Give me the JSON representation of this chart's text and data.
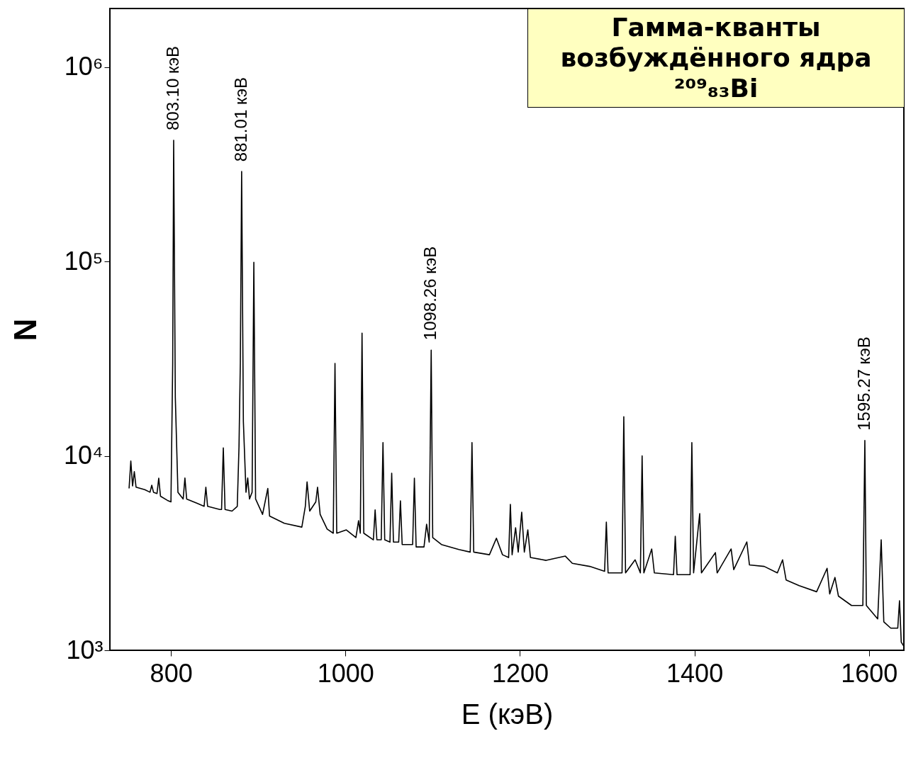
{
  "chart_data": {
    "type": "line",
    "title": "Гамма-кванты возбуждённого ядра ²⁰⁹₈₃Bi",
    "xlabel": "E (кэВ)",
    "ylabel": "N",
    "log": "y",
    "grid": false,
    "xlim": [
      730,
      1640
    ],
    "xticks": [
      800,
      1000,
      1200,
      1400,
      1600
    ],
    "ylim": [
      1000,
      2000000
    ],
    "yticks": [
      {
        "value": 1000,
        "label": "10³"
      },
      {
        "value": 10000,
        "label": "10⁴"
      },
      {
        "value": 100000,
        "label": "10⁵"
      },
      {
        "value": 1000000,
        "label": "10⁶"
      }
    ],
    "annotations": [
      {
        "text": "803.10 кэВ",
        "x": 803.1,
        "y": 420000
      },
      {
        "text": "881.01 кэВ",
        "x": 881.01,
        "y": 290000
      },
      {
        "text": "1098.26 кэВ",
        "x": 1098.26,
        "y": 35000
      },
      {
        "text": "1595.27 кэВ",
        "x": 1595.27,
        "y": 12000
      }
    ],
    "x": [
      752,
      754,
      756,
      758,
      760,
      770,
      776,
      778,
      780,
      784,
      786,
      788,
      796,
      800,
      802,
      803.1,
      805,
      808,
      814,
      816,
      818,
      830,
      838,
      840,
      842,
      856,
      858,
      860,
      862,
      870,
      876,
      878,
      879.5,
      881.01,
      883,
      886,
      888,
      890,
      893,
      895,
      897,
      905,
      911,
      913,
      930,
      950,
      954,
      956,
      959,
      966,
      968,
      971,
      979,
      986,
      988,
      990,
      1001,
      1012,
      1015,
      1017,
      1019,
      1021,
      1032,
      1034,
      1036,
      1041,
      1043,
      1045,
      1051,
      1053,
      1055,
      1061,
      1063,
      1065,
      1077,
      1079,
      1081,
      1090,
      1093,
      1096,
      1098.26,
      1100,
      1110,
      1130,
      1143,
      1145,
      1147,
      1165,
      1173,
      1180,
      1187,
      1189,
      1191,
      1195,
      1198,
      1202,
      1205,
      1209,
      1212,
      1230,
      1252,
      1260,
      1280,
      1297,
      1299,
      1301,
      1317,
      1319,
      1321,
      1332,
      1338,
      1340,
      1342,
      1351,
      1354,
      1376,
      1378,
      1380,
      1395,
      1397,
      1399,
      1406,
      1408,
      1424,
      1426,
      1442,
      1445,
      1460,
      1463,
      1480,
      1495,
      1501,
      1505,
      1520,
      1540,
      1552,
      1555,
      1561,
      1565,
      1580,
      1593,
      1595.27,
      1597,
      1610,
      1614,
      1617,
      1625,
      1633,
      1635,
      1637,
      1640
    ],
    "series": [
      {
        "color": "#000000",
        "values": [
          6800,
          9400,
          7000,
          8300,
          6900,
          6700,
          6500,
          7060,
          6500,
          6400,
          7680,
          6200,
          5900,
          5800,
          30000,
          420000,
          20000,
          6500,
          6000,
          7700,
          6000,
          5700,
          5500,
          6900,
          5500,
          5300,
          5300,
          11000,
          5300,
          5200,
          5500,
          11200,
          30000,
          290000,
          15000,
          6500,
          7700,
          6000,
          6500,
          99000,
          6000,
          5000,
          6800,
          4900,
          4500,
          4300,
          5500,
          7350,
          5200,
          5800,
          6900,
          5000,
          4200,
          4000,
          29900,
          4000,
          4160,
          3800,
          4640,
          4000,
          42800,
          4000,
          3700,
          5270,
          3700,
          3700,
          11700,
          3700,
          3600,
          8140,
          3600,
          3600,
          5870,
          3500,
          3500,
          7680,
          3400,
          3400,
          4450,
          3600,
          35000,
          3800,
          3500,
          3300,
          3200,
          11700,
          3200,
          3100,
          3770,
          3100,
          3000,
          5630,
          3100,
          4270,
          3200,
          5130,
          3200,
          4160,
          3000,
          2900,
          3050,
          2800,
          2700,
          2550,
          4560,
          2500,
          2500,
          15900,
          2500,
          2920,
          2500,
          10000,
          2500,
          3320,
          2500,
          2450,
          3860,
          2450,
          2450,
          11700,
          2500,
          5050,
          2500,
          3180,
          2500,
          3320,
          2600,
          3610,
          2750,
          2700,
          2500,
          2920,
          2300,
          2150,
          2000,
          2640,
          1950,
          2370,
          1900,
          1700,
          1700,
          12000,
          1700,
          1450,
          3700,
          1400,
          1300,
          1300,
          1800,
          1100,
          1050
        ]
      }
    ]
  }
}
